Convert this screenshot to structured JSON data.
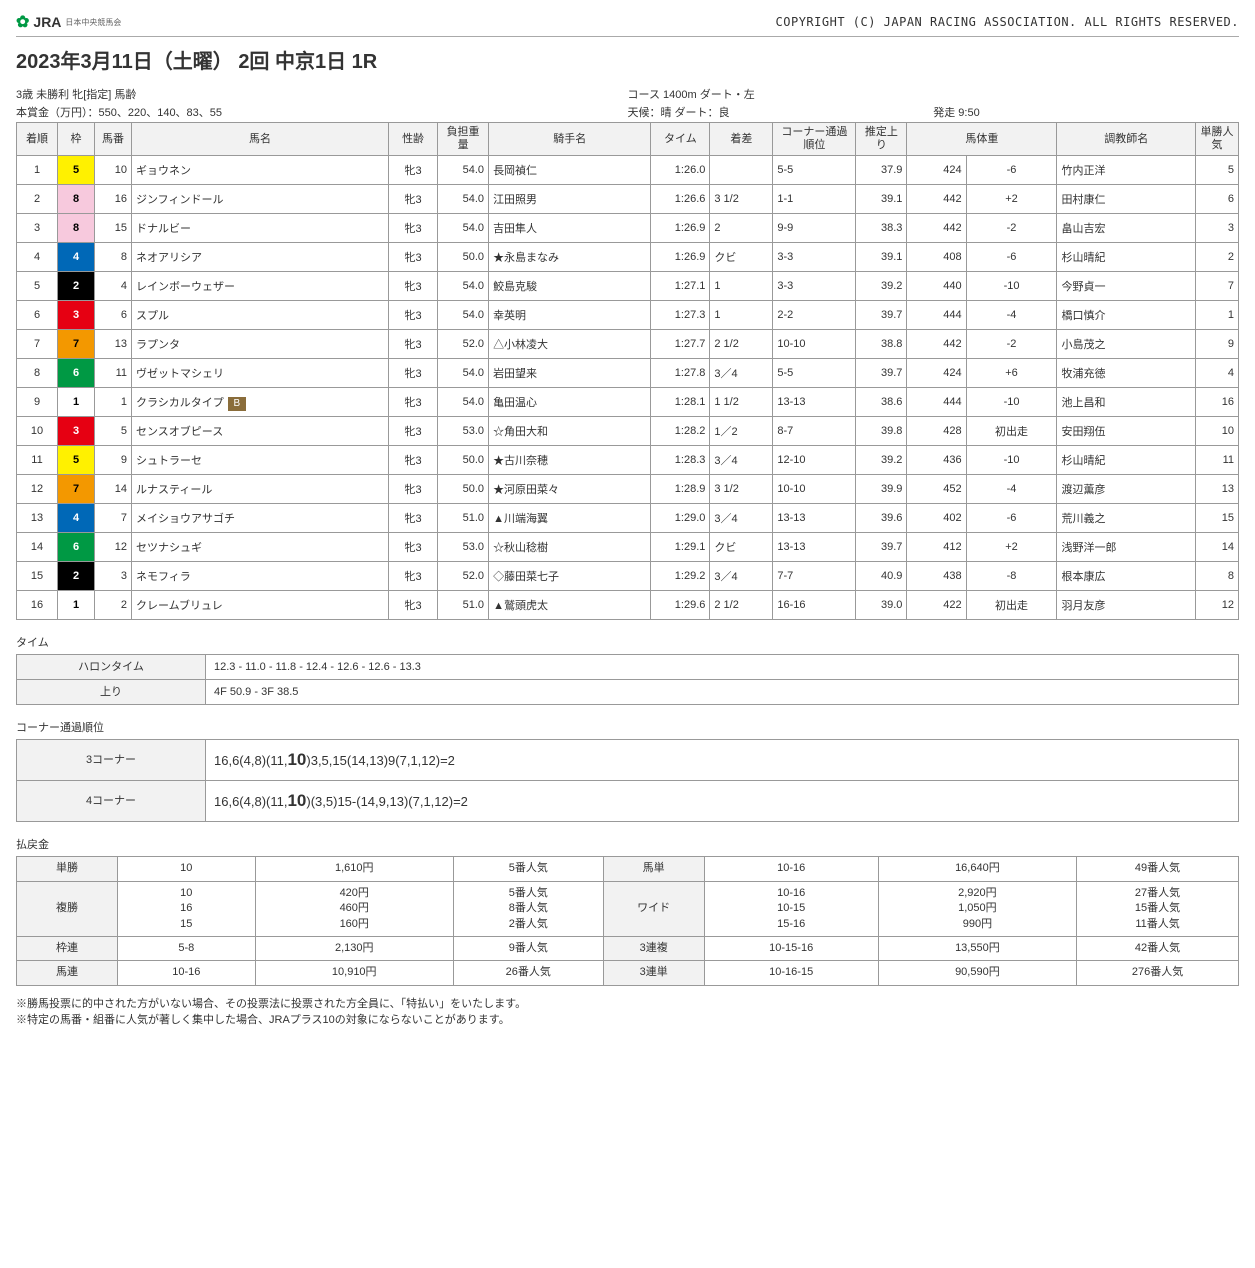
{
  "header": {
    "logo_brand": "JRA",
    "logo_sub": "日本中央競馬会",
    "copyright": "COPYRIGHT (C) JAPAN RACING ASSOCIATION. ALL RIGHTS RESERVED."
  },
  "title": "2023年3月11日（土曜） 2回 中京1日 1R",
  "meta": {
    "line1_left": "3歳 未勝利 牝[指定] 馬齢",
    "line1_mid": "コース 1400m ダート・左",
    "line2_left": "本賞金（万円）：550、220、140、83、55",
    "line2_mid": "天候：晴 ダート：良",
    "line2_right": "発走 9:50"
  },
  "cols": [
    "着順",
    "枠",
    "馬番",
    "馬名",
    "性齢",
    "負担重量",
    "騎手名",
    "タイム",
    "着差",
    "コーナー通過順位",
    "推定上り",
    "馬体重",
    "",
    "調教師名",
    "単勝人気"
  ],
  "waku_colors": {
    "1": {
      "bg": "#ffffff",
      "fg": "#000000"
    },
    "2": {
      "bg": "#000000",
      "fg": "#ffffff"
    },
    "3": {
      "bg": "#e60012",
      "fg": "#ffffff"
    },
    "4": {
      "bg": "#0068b7",
      "fg": "#ffffff"
    },
    "5": {
      "bg": "#fff100",
      "fg": "#000000"
    },
    "6": {
      "bg": "#009944",
      "fg": "#ffffff"
    },
    "7": {
      "bg": "#f39800",
      "fg": "#000000"
    },
    "8": {
      "bg": "#f7c9dd",
      "fg": "#000000"
    }
  },
  "rows": [
    {
      "pl": "1",
      "wk": "5",
      "no": "10",
      "name": "ギョウネン",
      "sa": "牝3",
      "wt": "54.0",
      "jk": "長岡禎仁",
      "tm": "1:26.0",
      "mg": "",
      "cn": "5-5",
      "up": "37.9",
      "bw": "424",
      "bc": "-6",
      "tr": "竹内正洋",
      "pp": "5"
    },
    {
      "pl": "2",
      "wk": "8",
      "no": "16",
      "name": "ジンフィンドール",
      "sa": "牝3",
      "wt": "54.0",
      "jk": "江田照男",
      "tm": "1:26.6",
      "mg": "3 1/2",
      "cn": "1-1",
      "up": "39.1",
      "bw": "442",
      "bc": "+2",
      "tr": "田村康仁",
      "pp": "6"
    },
    {
      "pl": "3",
      "wk": "8",
      "no": "15",
      "name": "ドナルビー",
      "sa": "牝3",
      "wt": "54.0",
      "jk": "吉田隼人",
      "tm": "1:26.9",
      "mg": "2",
      "cn": "9-9",
      "up": "38.3",
      "bw": "442",
      "bc": "-2",
      "tr": "畠山吉宏",
      "pp": "3"
    },
    {
      "pl": "4",
      "wk": "4",
      "no": "8",
      "name": "ネオアリシア",
      "sa": "牝3",
      "wt": "50.0",
      "jk": "★永島まなみ",
      "tm": "1:26.9",
      "mg": "クビ",
      "cn": "3-3",
      "up": "39.1",
      "bw": "408",
      "bc": "-6",
      "tr": "杉山晴紀",
      "pp": "2"
    },
    {
      "pl": "5",
      "wk": "2",
      "no": "4",
      "name": "レインボーウェザー",
      "sa": "牝3",
      "wt": "54.0",
      "jk": "鮫島克駿",
      "tm": "1:27.1",
      "mg": "1",
      "cn": "3-3",
      "up": "39.2",
      "bw": "440",
      "bc": "-10",
      "tr": "今野貞一",
      "pp": "7"
    },
    {
      "pl": "6",
      "wk": "3",
      "no": "6",
      "name": "スプル",
      "sa": "牝3",
      "wt": "54.0",
      "jk": "幸英明",
      "tm": "1:27.3",
      "mg": "1",
      "cn": "2-2",
      "up": "39.7",
      "bw": "444",
      "bc": "-4",
      "tr": "橋口慎介",
      "pp": "1"
    },
    {
      "pl": "7",
      "wk": "7",
      "no": "13",
      "name": "ラプンタ",
      "sa": "牝3",
      "wt": "52.0",
      "jk": "△小林凌大",
      "tm": "1:27.7",
      "mg": "2 1/2",
      "cn": "10-10",
      "up": "38.8",
      "bw": "442",
      "bc": "-2",
      "tr": "小島茂之",
      "pp": "9"
    },
    {
      "pl": "8",
      "wk": "6",
      "no": "11",
      "name": "ヴゼットマシェリ",
      "sa": "牝3",
      "wt": "54.0",
      "jk": "岩田望来",
      "tm": "1:27.8",
      "mg": "3／4",
      "cn": "5-5",
      "up": "39.7",
      "bw": "424",
      "bc": "+6",
      "tr": "牧浦充徳",
      "pp": "4"
    },
    {
      "pl": "9",
      "wk": "1",
      "no": "1",
      "name": "クラシカルタイプ",
      "badge": "B",
      "sa": "牝3",
      "wt": "54.0",
      "jk": "亀田温心",
      "tm": "1:28.1",
      "mg": "1 1/2",
      "cn": "13-13",
      "up": "38.6",
      "bw": "444",
      "bc": "-10",
      "tr": "池上昌和",
      "pp": "16"
    },
    {
      "pl": "10",
      "wk": "3",
      "no": "5",
      "name": "センスオブピース",
      "sa": "牝3",
      "wt": "53.0",
      "jk": "☆角田大和",
      "tm": "1:28.2",
      "mg": "1／2",
      "cn": "8-7",
      "up": "39.8",
      "bw": "428",
      "bc": "初出走",
      "tr": "安田翔伍",
      "pp": "10"
    },
    {
      "pl": "11",
      "wk": "5",
      "no": "9",
      "name": "シュトラーセ",
      "sa": "牝3",
      "wt": "50.0",
      "jk": "★古川奈穂",
      "tm": "1:28.3",
      "mg": "3／4",
      "cn": "12-10",
      "up": "39.2",
      "bw": "436",
      "bc": "-10",
      "tr": "杉山晴紀",
      "pp": "11"
    },
    {
      "pl": "12",
      "wk": "7",
      "no": "14",
      "name": "ルナスティール",
      "sa": "牝3",
      "wt": "50.0",
      "jk": "★河原田菜々",
      "tm": "1:28.9",
      "mg": "3 1/2",
      "cn": "10-10",
      "up": "39.9",
      "bw": "452",
      "bc": "-4",
      "tr": "渡辺薫彦",
      "pp": "13"
    },
    {
      "pl": "13",
      "wk": "4",
      "no": "7",
      "name": "メイショウアサゴチ",
      "sa": "牝3",
      "wt": "51.0",
      "jk": "▲川端海翼",
      "tm": "1:29.0",
      "mg": "3／4",
      "cn": "13-13",
      "up": "39.6",
      "bw": "402",
      "bc": "-6",
      "tr": "荒川義之",
      "pp": "15"
    },
    {
      "pl": "14",
      "wk": "6",
      "no": "12",
      "name": "セツナシュギ",
      "sa": "牝3",
      "wt": "53.0",
      "jk": "☆秋山稔樹",
      "tm": "1:29.1",
      "mg": "クビ",
      "cn": "13-13",
      "up": "39.7",
      "bw": "412",
      "bc": "+2",
      "tr": "浅野洋一郎",
      "pp": "14"
    },
    {
      "pl": "15",
      "wk": "2",
      "no": "3",
      "name": "ネモフィラ",
      "sa": "牝3",
      "wt": "52.0",
      "jk": "◇藤田菜七子",
      "tm": "1:29.2",
      "mg": "3／4",
      "cn": "7-7",
      "up": "40.9",
      "bw": "438",
      "bc": "-8",
      "tr": "根本康広",
      "pp": "8"
    },
    {
      "pl": "16",
      "wk": "1",
      "no": "2",
      "name": "クレームブリュレ",
      "sa": "牝3",
      "wt": "51.0",
      "jk": "▲鷲頭虎太",
      "tm": "1:29.6",
      "mg": "2 1/2",
      "cn": "16-16",
      "up": "39.0",
      "bw": "422",
      "bc": "初出走",
      "tr": "羽月友彦",
      "pp": "12"
    }
  ],
  "time": {
    "label": "タイム",
    "rows": [
      [
        "ハロンタイム",
        "12.3 - 11.0 - 11.8 - 12.4 - 12.6 - 12.6 - 13.3"
      ],
      [
        "上り",
        "4F 50.9 - 3F 38.5"
      ]
    ]
  },
  "corner": {
    "label": "コーナー通過順位",
    "rows": [
      [
        "3コーナー",
        "16,6(4,8)(11,<b>10</b>)3,5,15(14,13)9(7,1,12)=2"
      ],
      [
        "4コーナー",
        "16,6(4,8)(11,<b>10</b>)(3,5)15-(14,9,13)(7,1,12)=2"
      ]
    ]
  },
  "payout": {
    "label": "払戻金",
    "rows": [
      [
        "単勝",
        "10",
        "1,610円",
        "5番人気",
        "馬単",
        "10-16",
        "16,640円",
        "49番人気"
      ],
      [
        "複勝",
        "10<br>16<br>15",
        "420円<br>460円<br>160円",
        "5番人気<br>8番人気<br>2番人気",
        "ワイド",
        "10-16<br>10-15<br>15-16",
        "2,920円<br>1,050円<br>990円",
        "27番人気<br>15番人気<br>11番人気"
      ],
      [
        "枠連",
        "5-8",
        "2,130円",
        "9番人気",
        "3連複",
        "10-15-16",
        "13,550円",
        "42番人気"
      ],
      [
        "馬連",
        "10-16",
        "10,910円",
        "26番人気",
        "3連単",
        "10-16-15",
        "90,590円",
        "276番人気"
      ]
    ]
  },
  "notes": [
    "※勝馬投票に的中された方がいない場合、その投票法に投票された方全員に、「特払い」をいたします。",
    "※特定の馬番・組番に人気が著しく集中した場合、JRAプラス10の対象にならないことがあります。"
  ]
}
